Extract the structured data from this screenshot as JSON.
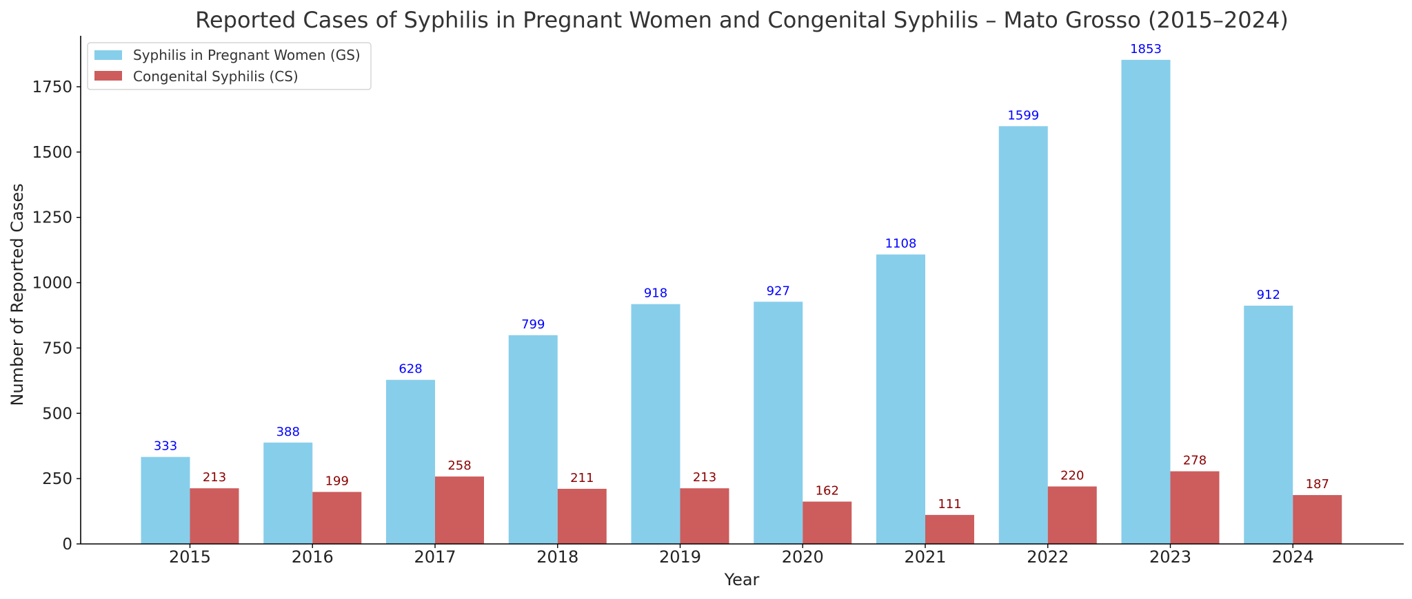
{
  "chart_data": {
    "type": "bar",
    "title": "Reported Cases of Syphilis in Pregnant Women and Congenital Syphilis – Mato Grosso (2015–2024)",
    "xlabel": "Year",
    "ylabel": "Number of Reported Cases",
    "categories": [
      "2015",
      "2016",
      "2017",
      "2018",
      "2019",
      "2020",
      "2021",
      "2022",
      "2023",
      "2024"
    ],
    "series": [
      {
        "name": "Syphilis in Pregnant Women (GS)",
        "values": [
          333,
          388,
          628,
          799,
          918,
          927,
          1108,
          1599,
          1853,
          912
        ],
        "color": "#87CEEB",
        "label_color": "#0000FF"
      },
      {
        "name": "Congenital Syphilis (CS)",
        "values": [
          213,
          199,
          258,
          211,
          213,
          162,
          111,
          220,
          278,
          187
        ],
        "color": "#CD5C5C",
        "label_color": "#8B0000"
      }
    ],
    "ylim": [
      0,
      1945
    ],
    "yticks": [
      0,
      250,
      500,
      750,
      1000,
      1250,
      1500,
      1750
    ],
    "grid": false,
    "legend_position": "top-left"
  }
}
